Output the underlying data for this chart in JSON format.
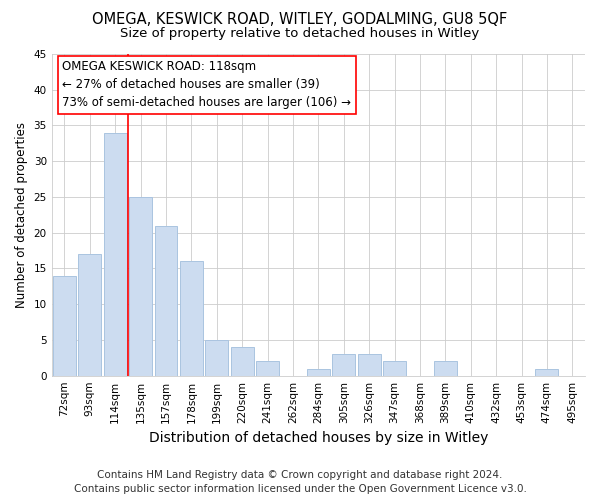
{
  "title": "OMEGA, KESWICK ROAD, WITLEY, GODALMING, GU8 5QF",
  "subtitle": "Size of property relative to detached houses in Witley",
  "xlabel": "Distribution of detached houses by size in Witley",
  "ylabel": "Number of detached properties",
  "categories": [
    "72sqm",
    "93sqm",
    "114sqm",
    "135sqm",
    "157sqm",
    "178sqm",
    "199sqm",
    "220sqm",
    "241sqm",
    "262sqm",
    "284sqm",
    "305sqm",
    "326sqm",
    "347sqm",
    "368sqm",
    "389sqm",
    "410sqm",
    "432sqm",
    "453sqm",
    "474sqm",
    "495sqm"
  ],
  "values": [
    14,
    17,
    34,
    25,
    21,
    16,
    5,
    4,
    2,
    0,
    1,
    3,
    3,
    2,
    0,
    2,
    0,
    0,
    0,
    1,
    0
  ],
  "bar_color": "#ccdcf0",
  "bar_edge_color": "#aac4e0",
  "ylim": [
    0,
    45
  ],
  "yticks": [
    0,
    5,
    10,
    15,
    20,
    25,
    30,
    35,
    40,
    45
  ],
  "redline_index": 2.5,
  "annotation_title": "OMEGA KESWICK ROAD: 118sqm",
  "annotation_line1": "← 27% of detached houses are smaller (39)",
  "annotation_line2": "73% of semi-detached houses are larger (106) →",
  "footer1": "Contains HM Land Registry data © Crown copyright and database right 2024.",
  "footer2": "Contains public sector information licensed under the Open Government Licence v3.0.",
  "background_color": "#ffffff",
  "grid_color": "#cccccc",
  "title_fontsize": 10.5,
  "subtitle_fontsize": 9.5,
  "xlabel_fontsize": 10,
  "ylabel_fontsize": 8.5,
  "tick_fontsize": 7.5,
  "annotation_fontsize": 8.5,
  "footer_fontsize": 7.5
}
